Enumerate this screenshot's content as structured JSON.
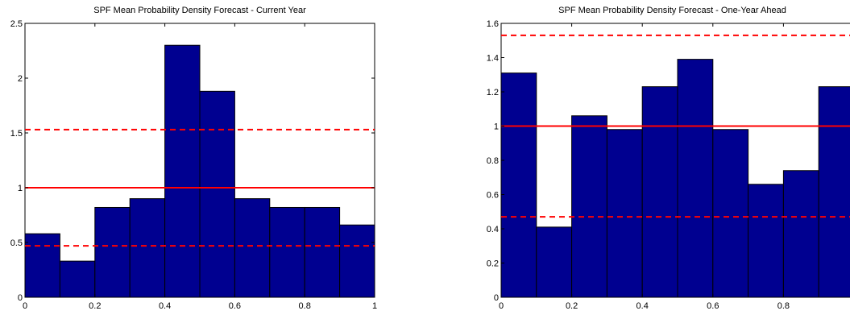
{
  "chart_data": [
    {
      "type": "bar",
      "title": "SPF Mean Probability Density Forecast - Current Year",
      "bin_edges": [
        0,
        0.1,
        0.2,
        0.3,
        0.4,
        0.5,
        0.6,
        0.7,
        0.8,
        0.9,
        1.0
      ],
      "values": [
        0.58,
        0.33,
        0.82,
        0.9,
        2.3,
        1.88,
        0.9,
        0.82,
        0.82,
        0.66
      ],
      "reference_line": 1.0,
      "confidence_bounds": [
        0.47,
        1.53
      ],
      "xlim": [
        0,
        1
      ],
      "ylim": [
        0,
        2.5
      ],
      "xticks": [
        "0",
        "0.2",
        "0.4",
        "0.6",
        "0.8",
        "1"
      ],
      "yticks": [
        "0",
        "0.5",
        "1",
        "1.5",
        "2",
        "2.5"
      ],
      "bar_color": "#000090",
      "line_color": "#ff0000"
    },
    {
      "type": "bar",
      "title": "SPF Mean Probability Density Forecast - One-Year Ahead",
      "bin_edges": [
        0,
        0.1,
        0.2,
        0.3,
        0.4,
        0.5,
        0.6,
        0.7,
        0.8,
        0.9,
        1.0
      ],
      "values": [
        1.31,
        0.41,
        1.06,
        0.98,
        1.23,
        1.39,
        0.98,
        0.66,
        0.74,
        1.23
      ],
      "reference_line": 1.0,
      "confidence_bounds": [
        0.47,
        1.53
      ],
      "xlim": [
        0,
        1
      ],
      "ylim": [
        0,
        1.6
      ],
      "xticks": [
        "0",
        "0.2",
        "0.4",
        "0.6",
        "0.8",
        "1"
      ],
      "yticks": [
        "0",
        "0.2",
        "0.4",
        "0.6",
        "0.8",
        "1",
        "1.2",
        "1.4",
        "1.6"
      ],
      "bar_color": "#000090",
      "line_color": "#ff0000"
    }
  ]
}
